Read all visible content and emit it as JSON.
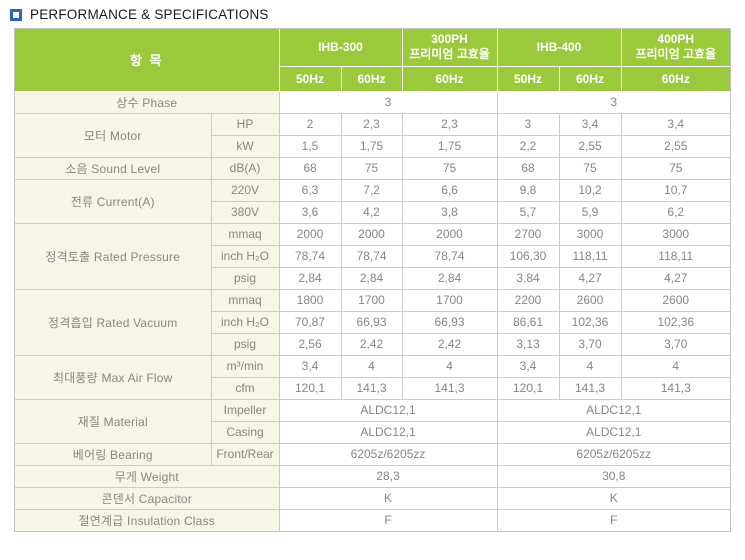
{
  "title": {
    "bullet_icon": "blue-square-bullet",
    "text": "PERFORMANCE & SPECIFICATIONS"
  },
  "colors": {
    "header_green": "#9bc93c",
    "label_cream": "#f7f6e6",
    "border_gray": "#cccccc",
    "outer_border": "#c2c2c2",
    "bullet_blue": "#2a65c0",
    "body_text": "#868686"
  },
  "table": {
    "corner_label": "항 목",
    "header": {
      "groups": [
        {
          "line1": "IHB-300",
          "line2": "",
          "hz": [
            "50Hz",
            "60Hz"
          ]
        },
        {
          "line1": "300PH",
          "line2": "프리미엄 고효율",
          "hz": [
            "60Hz"
          ]
        },
        {
          "line1": "IHB-400",
          "line2": "",
          "hz": [
            "50Hz",
            "60Hz"
          ]
        },
        {
          "line1": "400PH",
          "line2": "프리미엄 고효율",
          "hz": [
            "60Hz"
          ]
        }
      ]
    },
    "rows": [
      [
        {
          "t": "상수 Phase",
          "k": "label",
          "c": 2
        },
        {
          "t": "3",
          "c": 3
        },
        {
          "t": "3",
          "c": 3
        }
      ],
      [
        {
          "t": "모터 Motor",
          "k": "label",
          "r": 2
        },
        {
          "t": "HP",
          "k": "sub"
        },
        {
          "t": "2"
        },
        {
          "t": "2,3"
        },
        {
          "t": "2,3"
        },
        {
          "t": "3"
        },
        {
          "t": "3,4"
        },
        {
          "t": "3,4"
        }
      ],
      [
        {
          "t": "kW",
          "k": "sub"
        },
        {
          "t": "1,5"
        },
        {
          "t": "1,75"
        },
        {
          "t": "1,75"
        },
        {
          "t": "2,2"
        },
        {
          "t": "2,55"
        },
        {
          "t": "2,55"
        }
      ],
      [
        {
          "t": "소음 Sound Level",
          "k": "label"
        },
        {
          "t": "dB(A)",
          "k": "sub"
        },
        {
          "t": "68"
        },
        {
          "t": "75"
        },
        {
          "t": "75"
        },
        {
          "t": "68"
        },
        {
          "t": "75"
        },
        {
          "t": "75"
        }
      ],
      [
        {
          "t": "전류 Current(A)",
          "k": "label",
          "r": 2
        },
        {
          "t": "220V",
          "k": "sub"
        },
        {
          "t": "6,3"
        },
        {
          "t": "7,2"
        },
        {
          "t": "6,6"
        },
        {
          "t": "9,8"
        },
        {
          "t": "10,2"
        },
        {
          "t": "10,7"
        }
      ],
      [
        {
          "t": "380V",
          "k": "sub"
        },
        {
          "t": "3,6"
        },
        {
          "t": "4,2"
        },
        {
          "t": "3,8"
        },
        {
          "t": "5,7"
        },
        {
          "t": "5,9"
        },
        {
          "t": "6,2"
        }
      ],
      [
        {
          "t": "정격토출 Rated Pressure",
          "k": "label",
          "r": 3
        },
        {
          "t": "mmaq",
          "k": "sub"
        },
        {
          "t": "2000"
        },
        {
          "t": "2000"
        },
        {
          "t": "2000"
        },
        {
          "t": "2700"
        },
        {
          "t": "3000"
        },
        {
          "t": "3000"
        }
      ],
      [
        {
          "t": "inch H₂O",
          "k": "sub"
        },
        {
          "t": "78,74"
        },
        {
          "t": "78,74"
        },
        {
          "t": "78,74"
        },
        {
          "t": "106,30"
        },
        {
          "t": "118,11"
        },
        {
          "t": "118,11"
        }
      ],
      [
        {
          "t": "psig",
          "k": "sub"
        },
        {
          "t": "2,84"
        },
        {
          "t": "2,84"
        },
        {
          "t": "2,84"
        },
        {
          "t": "3,84"
        },
        {
          "t": "4,27"
        },
        {
          "t": "4,27"
        }
      ],
      [
        {
          "t": "정격흡입 Rated Vacuum",
          "k": "label",
          "r": 3
        },
        {
          "t": "mmaq",
          "k": "sub"
        },
        {
          "t": "1800"
        },
        {
          "t": "1700"
        },
        {
          "t": "1700"
        },
        {
          "t": "2200"
        },
        {
          "t": "2600"
        },
        {
          "t": "2600"
        }
      ],
      [
        {
          "t": "inch H₂O",
          "k": "sub"
        },
        {
          "t": "70,87"
        },
        {
          "t": "66,93"
        },
        {
          "t": "66,93"
        },
        {
          "t": "86,61"
        },
        {
          "t": "102,36"
        },
        {
          "t": "102,36"
        }
      ],
      [
        {
          "t": "psig",
          "k": "sub"
        },
        {
          "t": "2,56"
        },
        {
          "t": "2,42"
        },
        {
          "t": "2,42"
        },
        {
          "t": "3,13"
        },
        {
          "t": "3,70"
        },
        {
          "t": "3,70"
        }
      ],
      [
        {
          "t": "최대풍량 Max Air Flow",
          "k": "label",
          "r": 2
        },
        {
          "t": "m³/min",
          "k": "sub"
        },
        {
          "t": "3,4"
        },
        {
          "t": "4"
        },
        {
          "t": "4"
        },
        {
          "t": "3,4"
        },
        {
          "t": "4"
        },
        {
          "t": "4"
        }
      ],
      [
        {
          "t": "cfm",
          "k": "sub"
        },
        {
          "t": "120,1"
        },
        {
          "t": "141,3"
        },
        {
          "t": "141,3"
        },
        {
          "t": "120,1"
        },
        {
          "t": "141,3"
        },
        {
          "t": "141,3"
        }
      ],
      [
        {
          "t": "재질 Material",
          "k": "label",
          "r": 2
        },
        {
          "t": "Impeller",
          "k": "sub"
        },
        {
          "t": "ALDC12,1",
          "c": 3
        },
        {
          "t": "ALDC12,1",
          "c": 3
        }
      ],
      [
        {
          "t": "Casing",
          "k": "sub"
        },
        {
          "t": "ALDC12,1",
          "c": 3
        },
        {
          "t": "ALDC12,1",
          "c": 3
        }
      ],
      [
        {
          "t": "베어링 Bearing",
          "k": "label"
        },
        {
          "t": "Front/Rear",
          "k": "sub"
        },
        {
          "t": "6205z/6205zz",
          "c": 3
        },
        {
          "t": "6205z/6205zz",
          "c": 3
        }
      ],
      [
        {
          "t": "무게 Weight",
          "k": "label",
          "c": 2
        },
        {
          "t": "28,3",
          "c": 3
        },
        {
          "t": "30,8",
          "c": 3
        }
      ],
      [
        {
          "t": "콘덴서 Capacitor",
          "k": "label",
          "c": 2
        },
        {
          "t": "K",
          "c": 3
        },
        {
          "t": "K",
          "c": 3
        }
      ],
      [
        {
          "t": "절연계급 Insulation Class",
          "k": "label",
          "c": 2
        },
        {
          "t": "F",
          "c": 3
        },
        {
          "t": "F",
          "c": 3
        }
      ]
    ]
  }
}
